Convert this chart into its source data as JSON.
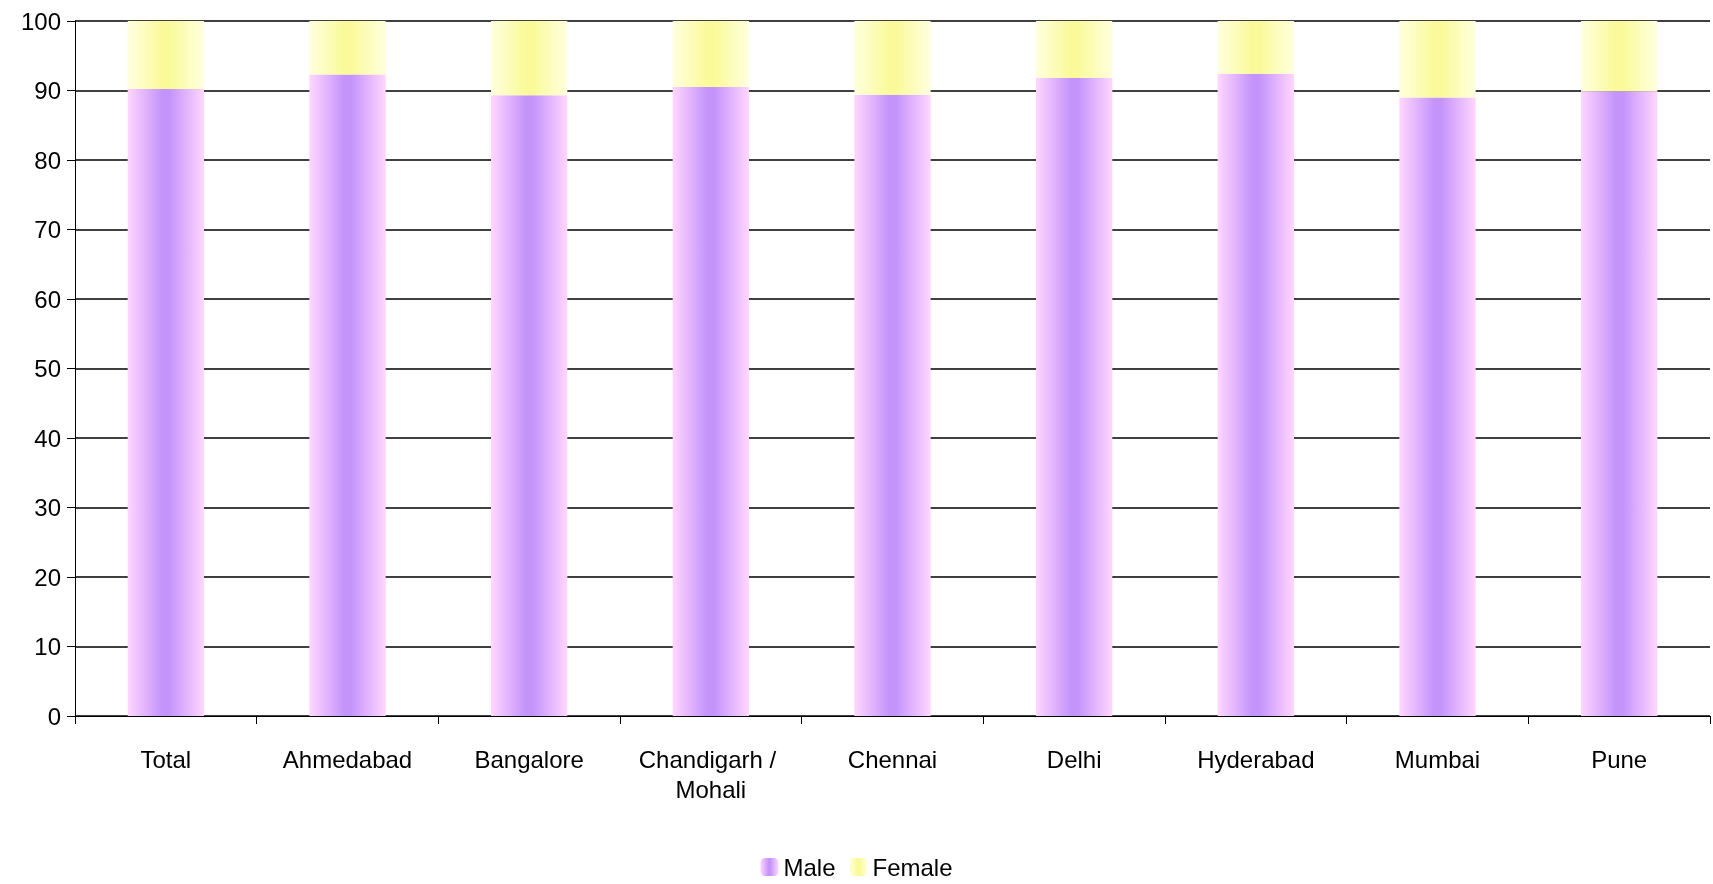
{
  "chart_data": {
    "type": "bar",
    "stacked": true,
    "categories": [
      "Total",
      "Ahmedabad",
      "Bangalore",
      "Chandigarh / Mohali",
      "Chennai",
      "Delhi",
      "Hyderabad",
      "Mumbai",
      "Pune"
    ],
    "series": [
      {
        "name": "Male",
        "color": "#c594fa",
        "values": [
          90.2,
          92.3,
          89.3,
          90.5,
          89.4,
          91.8,
          92.4,
          89.0,
          89.9
        ]
      },
      {
        "name": "Female",
        "color": "#fafa9a",
        "values": [
          9.8,
          7.7,
          10.7,
          9.5,
          10.6,
          8.2,
          7.6,
          11.0,
          10.1
        ]
      }
    ],
    "ylim": [
      0,
      100
    ],
    "yticks": [
      0,
      10,
      20,
      30,
      40,
      50,
      60,
      70,
      80,
      90,
      100
    ],
    "grid": "y",
    "legend": "bottom"
  }
}
